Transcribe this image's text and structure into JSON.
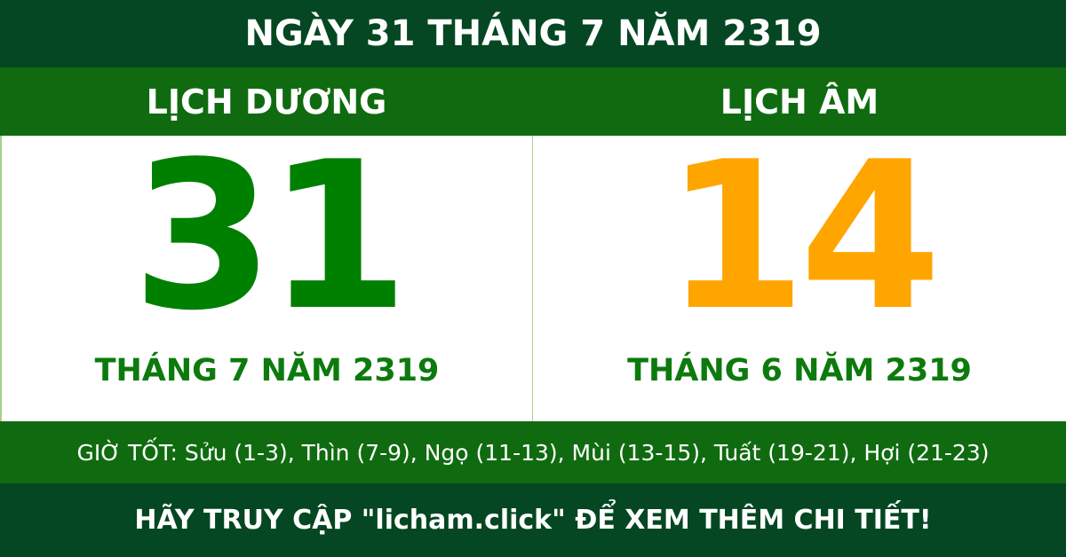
{
  "title": "NGÀY 31 THÁNG 7 NĂM 2319",
  "solar": {
    "heading": "LỊCH DƯƠNG",
    "day": "31",
    "month_year": "THÁNG 7 NĂM 2319"
  },
  "lunar": {
    "heading": "LỊCH ÂM",
    "day": "14",
    "month_year": "THÁNG 6 NĂM 2319"
  },
  "good_hours": "GIỜ TỐT: Sửu (1-3), Thìn (7-9), Ngọ (11-13), Mùi (13-15), Tuất (19-21), Hợi (21-23)",
  "footer": "HÃY TRUY CẬP \"licham.click\" ĐỂ XEM THÊM CHI TIẾT!",
  "colors": {
    "dark": "#044722",
    "green": "#106b10",
    "solar_number": "#008000",
    "lunar_number": "#FFA500"
  }
}
